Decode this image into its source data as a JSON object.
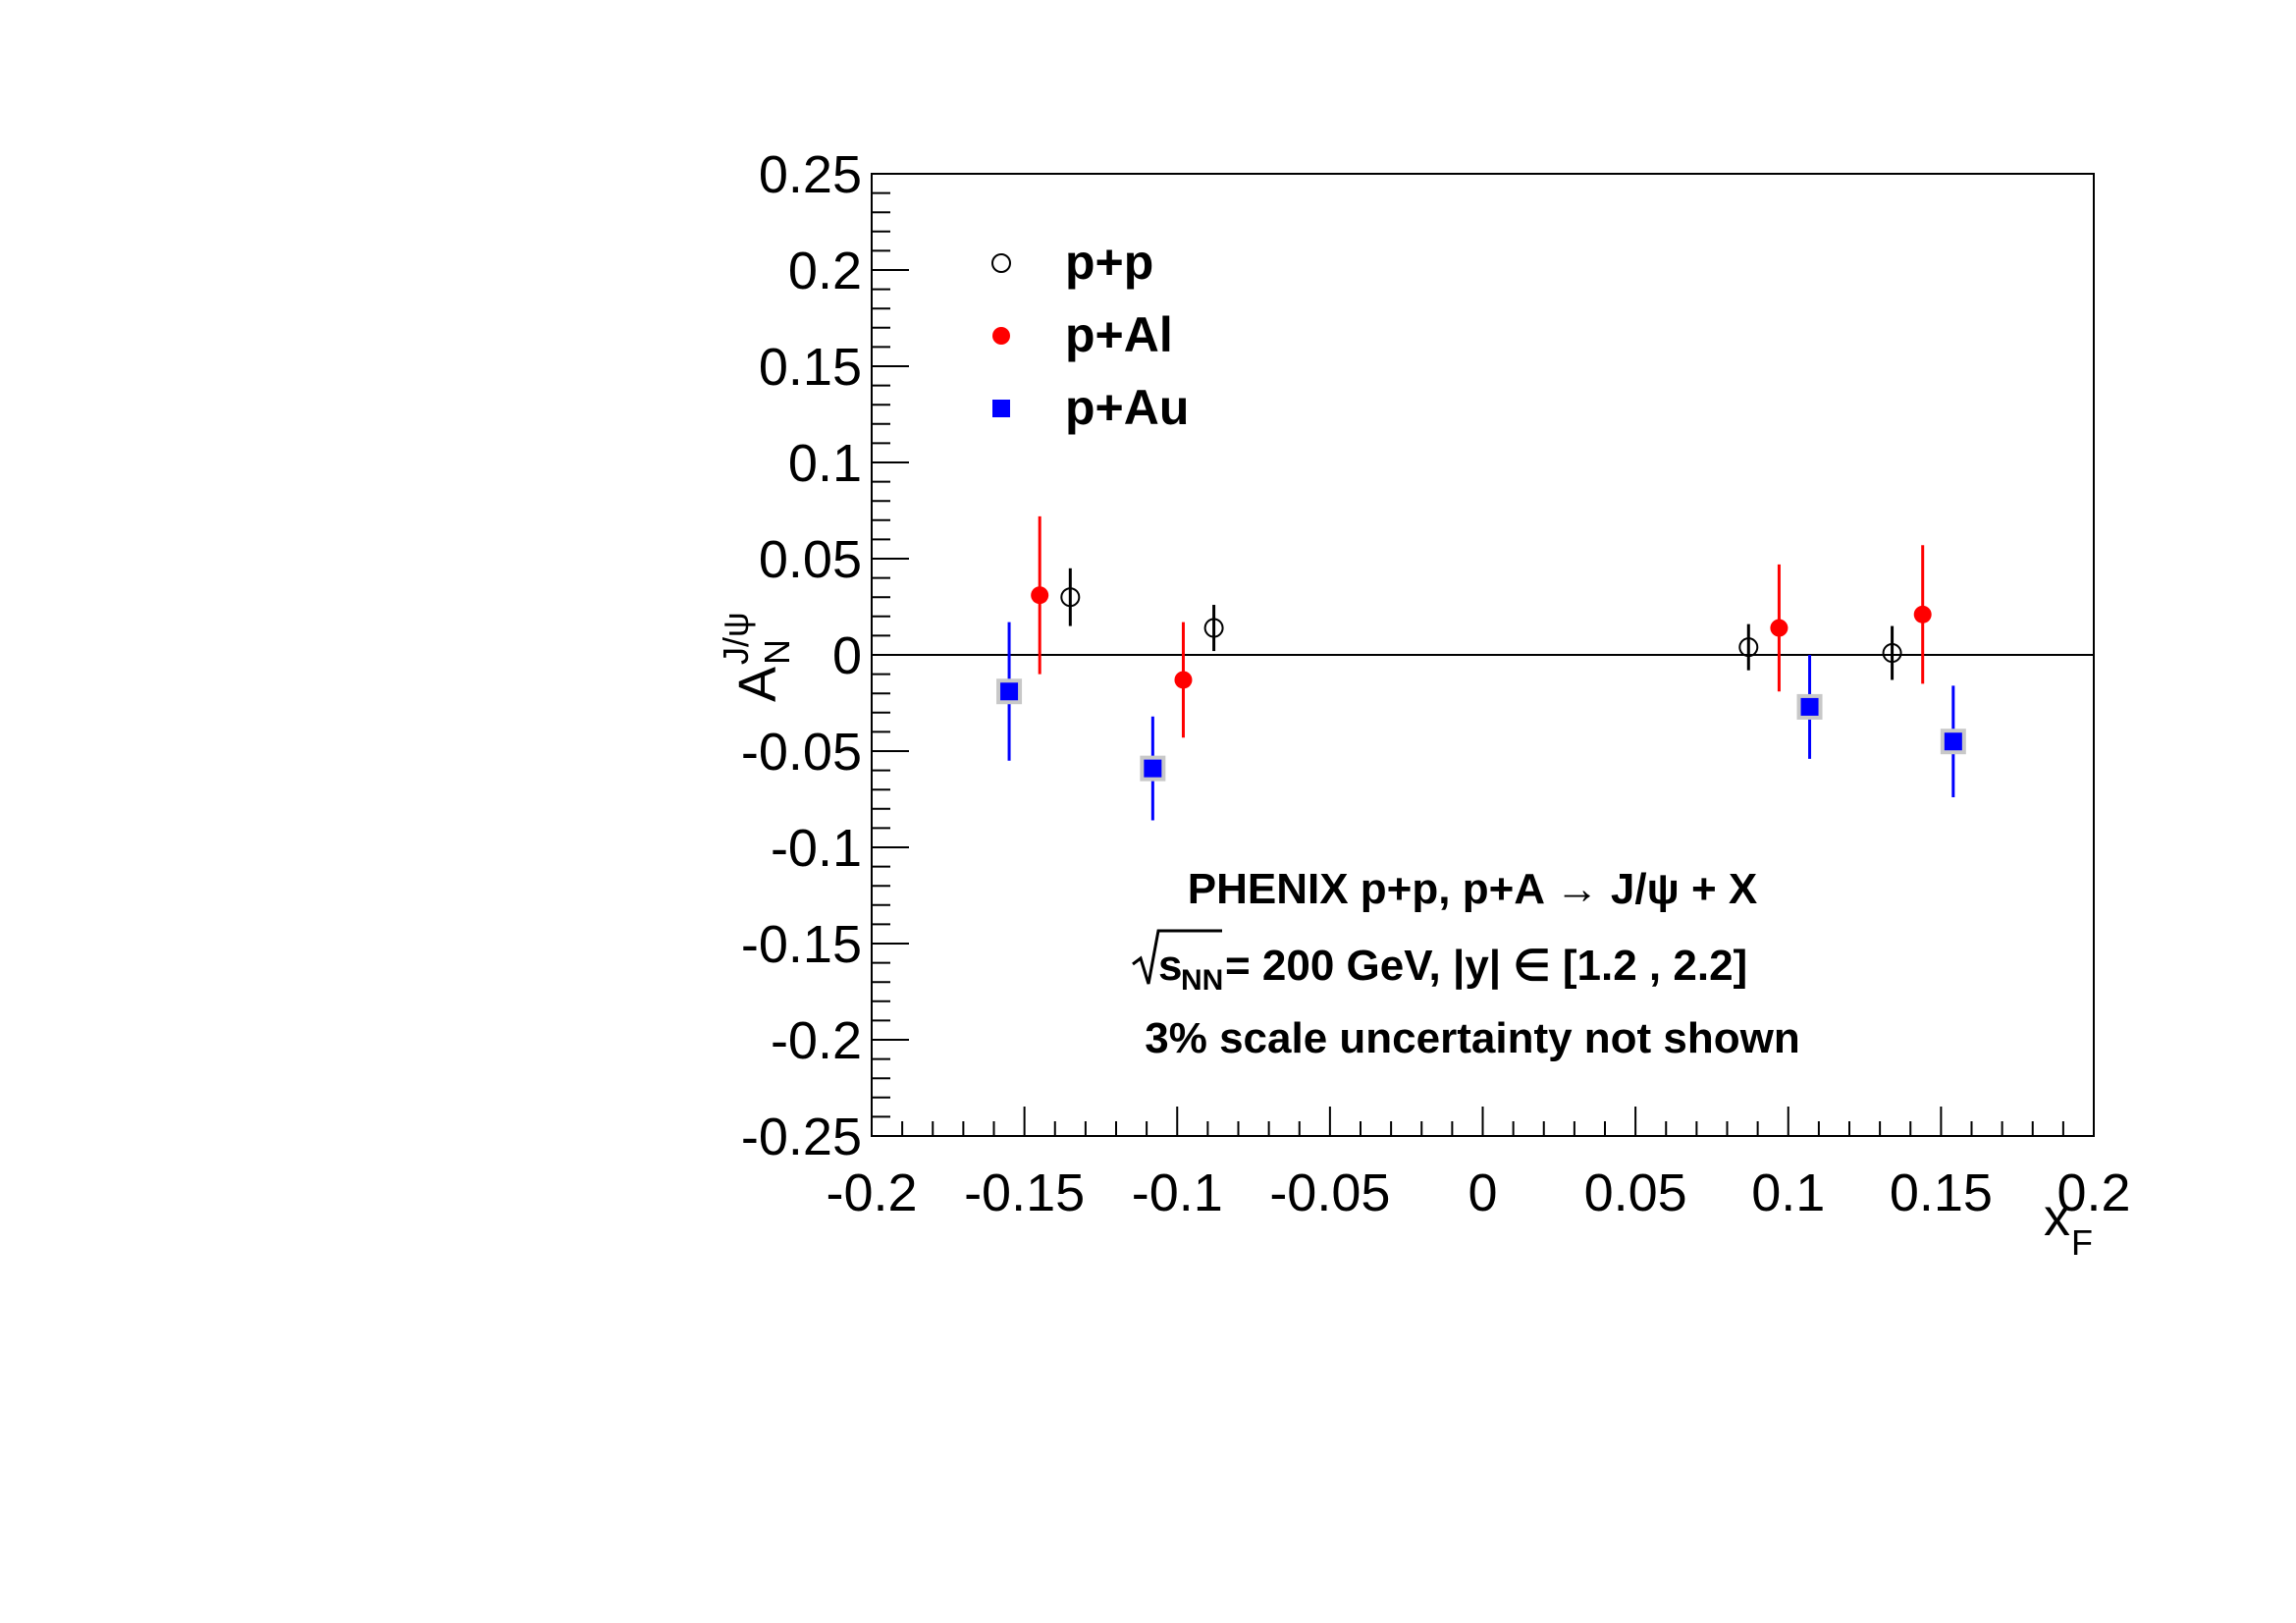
{
  "chart_data": {
    "type": "scatter",
    "xlabel": "x",
    "xlabel_sub": "F",
    "ylabel": "A",
    "ylabel_sub": "N",
    "ylabel_sup": "J/ψ",
    "xlim": [
      -0.2,
      0.2
    ],
    "ylim": [
      -0.25,
      0.25
    ],
    "x_ticks": [
      "-0.2",
      "-0.15",
      "-0.1",
      "-0.05",
      "0",
      "0.05",
      "0.1",
      "0.15",
      "0.2"
    ],
    "y_ticks": [
      "0.25",
      "0.2",
      "0.15",
      "0.1",
      "0.05",
      "0",
      "-0.05",
      "-0.1",
      "-0.15",
      "-0.2",
      "-0.25"
    ],
    "zero_line": true,
    "legend_position": "top-left",
    "series": [
      {
        "name": "p+p",
        "marker": "open-circle",
        "color": "#000000",
        "points": [
          {
            "x": -0.135,
            "y": 0.03,
            "err": 0.015
          },
          {
            "x": -0.088,
            "y": 0.014,
            "err": 0.012
          },
          {
            "x": 0.087,
            "y": 0.004,
            "err": 0.012
          },
          {
            "x": 0.134,
            "y": 0.001,
            "err": 0.014
          }
        ]
      },
      {
        "name": "p+Al",
        "marker": "filled-circle",
        "color": "#ff0000",
        "points": [
          {
            "x": -0.145,
            "y": 0.031,
            "err": 0.041
          },
          {
            "x": -0.098,
            "y": -0.013,
            "err": 0.03
          },
          {
            "x": 0.097,
            "y": 0.014,
            "err": 0.033
          },
          {
            "x": 0.144,
            "y": 0.021,
            "err": 0.036
          }
        ]
      },
      {
        "name": "p+Au",
        "marker": "filled-square",
        "color": "#0000ff",
        "points": [
          {
            "x": -0.155,
            "y": -0.019,
            "err": 0.036
          },
          {
            "x": -0.108,
            "y": -0.059,
            "err": 0.027
          },
          {
            "x": 0.107,
            "y": -0.027,
            "err": 0.027
          },
          {
            "x": 0.154,
            "y": -0.045,
            "err": 0.029
          }
        ]
      }
    ],
    "annotations": {
      "line1": "PHENIX p+p, p+A → J/ψ + X",
      "line2_sqrt": "s",
      "line2_sub": "NN",
      "line2_rest": " = 200 GeV,  |y| ∈ [1.2 , 2.2]",
      "line3": "3% scale uncertainty not shown"
    }
  }
}
